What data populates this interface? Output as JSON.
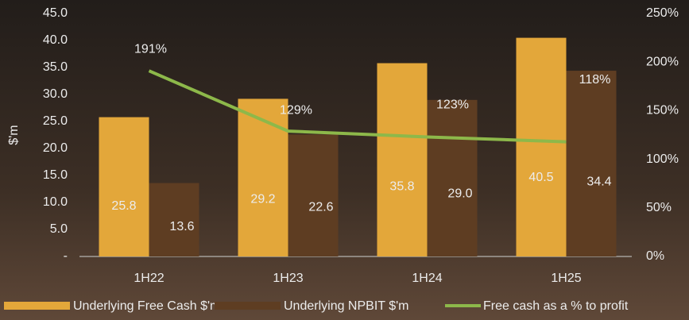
{
  "chart_data": {
    "type": "bar-line",
    "y_label": "$'m",
    "categories": [
      "1H22",
      "1H23",
      "1H24",
      "1H25"
    ],
    "series": [
      {
        "name": "Underlying Free Cash $'m",
        "color": "#e3a73a",
        "values": [
          25.8,
          29.2,
          35.8,
          40.5
        ],
        "value_labels": [
          "25.8",
          "29.2",
          "35.8",
          "40.5"
        ]
      },
      {
        "name": "Underlying NPBIT $'m",
        "color": "#5e3d22",
        "values": [
          13.6,
          22.6,
          29.0,
          34.4
        ],
        "value_labels": [
          "13.6",
          "22.6",
          "29.0",
          "34.4"
        ]
      },
      {
        "name": "Free cash as a % to profit",
        "color": "#8db84a",
        "type": "line",
        "axis": "y2",
        "values": [
          191,
          129,
          123,
          118
        ],
        "value_labels": [
          "191%",
          "129%",
          "123%",
          "118%"
        ]
      }
    ],
    "ylim": [
      0,
      45
    ],
    "yticks": [
      {
        "value": 0,
        "label": "-"
      },
      {
        "value": 5,
        "label": "5.0"
      },
      {
        "value": 10,
        "label": "10.0"
      },
      {
        "value": 15,
        "label": "15.0"
      },
      {
        "value": 20,
        "label": "20.0"
      },
      {
        "value": 25,
        "label": "25.0"
      },
      {
        "value": 30,
        "label": "30.0"
      },
      {
        "value": 35,
        "label": "35.0"
      },
      {
        "value": 40,
        "label": "40.0"
      },
      {
        "value": 45,
        "label": "45.0"
      }
    ],
    "y2lim": [
      0,
      250
    ],
    "y2ticks": [
      {
        "value": 0,
        "label": "0%"
      },
      {
        "value": 50,
        "label": "50%"
      },
      {
        "value": 100,
        "label": "100%"
      },
      {
        "value": 150,
        "label": "150%"
      },
      {
        "value": 200,
        "label": "200%"
      },
      {
        "value": 250,
        "label": "250%"
      }
    ],
    "legend": "bottom"
  }
}
